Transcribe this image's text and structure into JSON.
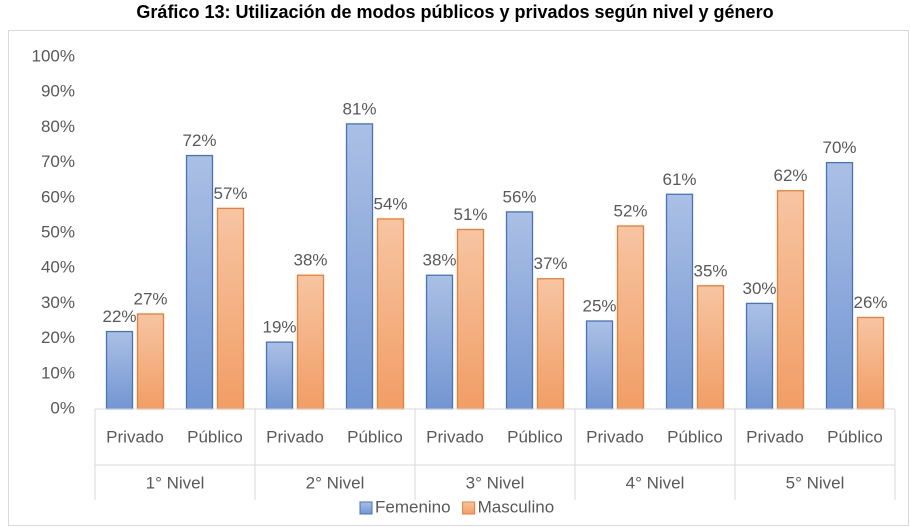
{
  "chart_data": {
    "type": "bar",
    "title": "Gráfico 13: Utilización de modos públicos y privados según nivel y género",
    "categories": [
      "Privado",
      "Público",
      "Privado",
      "Público",
      "Privado",
      "Público",
      "Privado",
      "Público",
      "Privado",
      "Público"
    ],
    "groups": [
      "1° Nivel",
      "2° Nivel",
      "3° Nivel",
      "4° Nivel",
      "5° Nivel"
    ],
    "series": [
      {
        "name": "Femenino",
        "color": "#4472c4",
        "values": [
          22,
          72,
          19,
          81,
          38,
          56,
          25,
          61,
          30,
          70
        ],
        "value_labels": [
          "22%",
          "72%",
          "19%",
          "81%",
          "38%",
          "56%",
          "25%",
          "61%",
          "30%",
          "70%"
        ]
      },
      {
        "name": "Masculino",
        "color": "#ed7d31",
        "values": [
          27,
          57,
          38,
          54,
          51,
          37,
          52,
          35,
          62,
          26
        ],
        "value_labels": [
          "27%",
          "57%",
          "38%",
          "54%",
          "51%",
          "37%",
          "52%",
          "35%",
          "62%",
          "26%"
        ]
      }
    ],
    "ylim": [
      0,
      100
    ],
    "yticks": [
      {
        "value": 0,
        "label": "0%"
      },
      {
        "value": 10,
        "label": "10%"
      },
      {
        "value": 20,
        "label": "20%"
      },
      {
        "value": 30,
        "label": "30%"
      },
      {
        "value": 40,
        "label": "40%"
      },
      {
        "value": 50,
        "label": "50%"
      },
      {
        "value": 60,
        "label": "60%"
      },
      {
        "value": 70,
        "label": "70%"
      },
      {
        "value": 80,
        "label": "80%"
      },
      {
        "value": 90,
        "label": "90%"
      },
      {
        "value": 100,
        "label": "100%"
      }
    ],
    "grid": false,
    "legend": "bottom"
  }
}
